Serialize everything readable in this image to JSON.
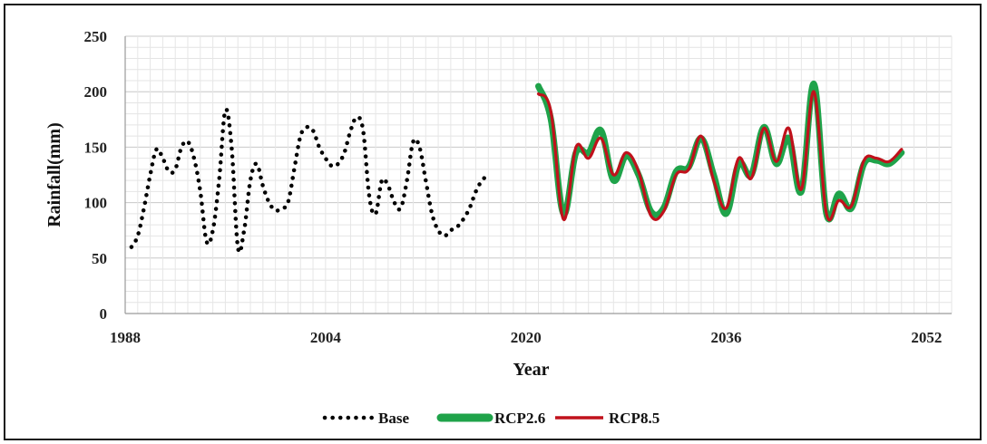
{
  "chart_data": {
    "type": "line",
    "title": "",
    "xlabel": "Year",
    "ylabel": "Rainfall(mm)",
    "xlim": [
      1988,
      2054
    ],
    "ylim": [
      0,
      250
    ],
    "x_ticks": [
      "1988",
      "2004",
      "2020",
      "2036",
      "2052"
    ],
    "y_ticks": [
      "0",
      "50",
      "100",
      "150",
      "200",
      "250"
    ],
    "grid": true,
    "legend_position": "bottom",
    "series": [
      {
        "name": "Base",
        "style": "dotted",
        "color": "#000000",
        "x": [
          1988.5,
          1989,
          1989.5,
          1990,
          1990.5,
          1991,
          1991.5,
          1992,
          1992.5,
          1993,
          1993.5,
          1994,
          1994.5,
          1995,
          1995.5,
          1996,
          1996.5,
          1997,
          1997.5,
          1998,
          1998.5,
          1999,
          1999.5,
          2000,
          2000.5,
          2001,
          2001.5,
          2002,
          2002.5,
          2003,
          2003.5,
          2004,
          2004.5,
          2005,
          2005.5,
          2006,
          2006.5,
          2007,
          2007.5,
          2008,
          2008.5,
          2009,
          2009.5,
          2010,
          2010.5,
          2011,
          2011.5,
          2012,
          2012.5,
          2013,
          2013.5,
          2014,
          2014.5,
          2015,
          2015.5,
          2016,
          2016.5,
          2017
        ],
        "y": [
          60,
          70,
          95,
          125,
          148,
          140,
          128,
          130,
          150,
          155,
          140,
          110,
          65,
          75,
          120,
          183,
          150,
          60,
          75,
          120,
          135,
          115,
          100,
          93,
          95,
          100,
          130,
          160,
          168,
          165,
          150,
          140,
          133,
          135,
          145,
          165,
          177,
          165,
          105,
          90,
          120,
          115,
          100,
          95,
          120,
          155,
          150,
          120,
          90,
          75,
          70,
          75,
          78,
          85,
          95,
          110,
          120,
          125
        ]
      },
      {
        "name": "RCP2.6",
        "style": "solid-thick",
        "color": "#1fa34a",
        "x": [
          2021,
          2022,
          2023,
          2024,
          2025,
          2026,
          2027,
          2028,
          2029,
          2030,
          2031,
          2032,
          2033,
          2034,
          2035,
          2036,
          2037,
          2038,
          2039,
          2040,
          2041,
          2042,
          2043,
          2044,
          2045,
          2046,
          2047,
          2048,
          2049,
          2050
        ],
        "y": [
          205,
          175,
          90,
          145,
          145,
          165,
          120,
          142,
          125,
          92,
          95,
          128,
          132,
          158,
          125,
          90,
          135,
          125,
          168,
          135,
          158,
          110,
          207,
          90,
          108,
          95,
          135,
          138,
          135,
          145
        ]
      },
      {
        "name": "RCP8.5",
        "style": "solid",
        "color": "#c0111b",
        "x": [
          2021,
          2022,
          2023,
          2024,
          2025,
          2026,
          2027,
          2028,
          2029,
          2030,
          2031,
          2032,
          2033,
          2034,
          2035,
          2036,
          2037,
          2038,
          2039,
          2040,
          2041,
          2042,
          2043,
          2044,
          2045,
          2046,
          2047,
          2048,
          2049,
          2050
        ],
        "y": [
          198,
          182,
          85,
          150,
          140,
          158,
          125,
          145,
          128,
          88,
          92,
          125,
          130,
          160,
          120,
          95,
          140,
          122,
          167,
          137,
          167,
          112,
          200,
          90,
          102,
          97,
          138,
          140,
          137,
          148
        ]
      }
    ]
  }
}
